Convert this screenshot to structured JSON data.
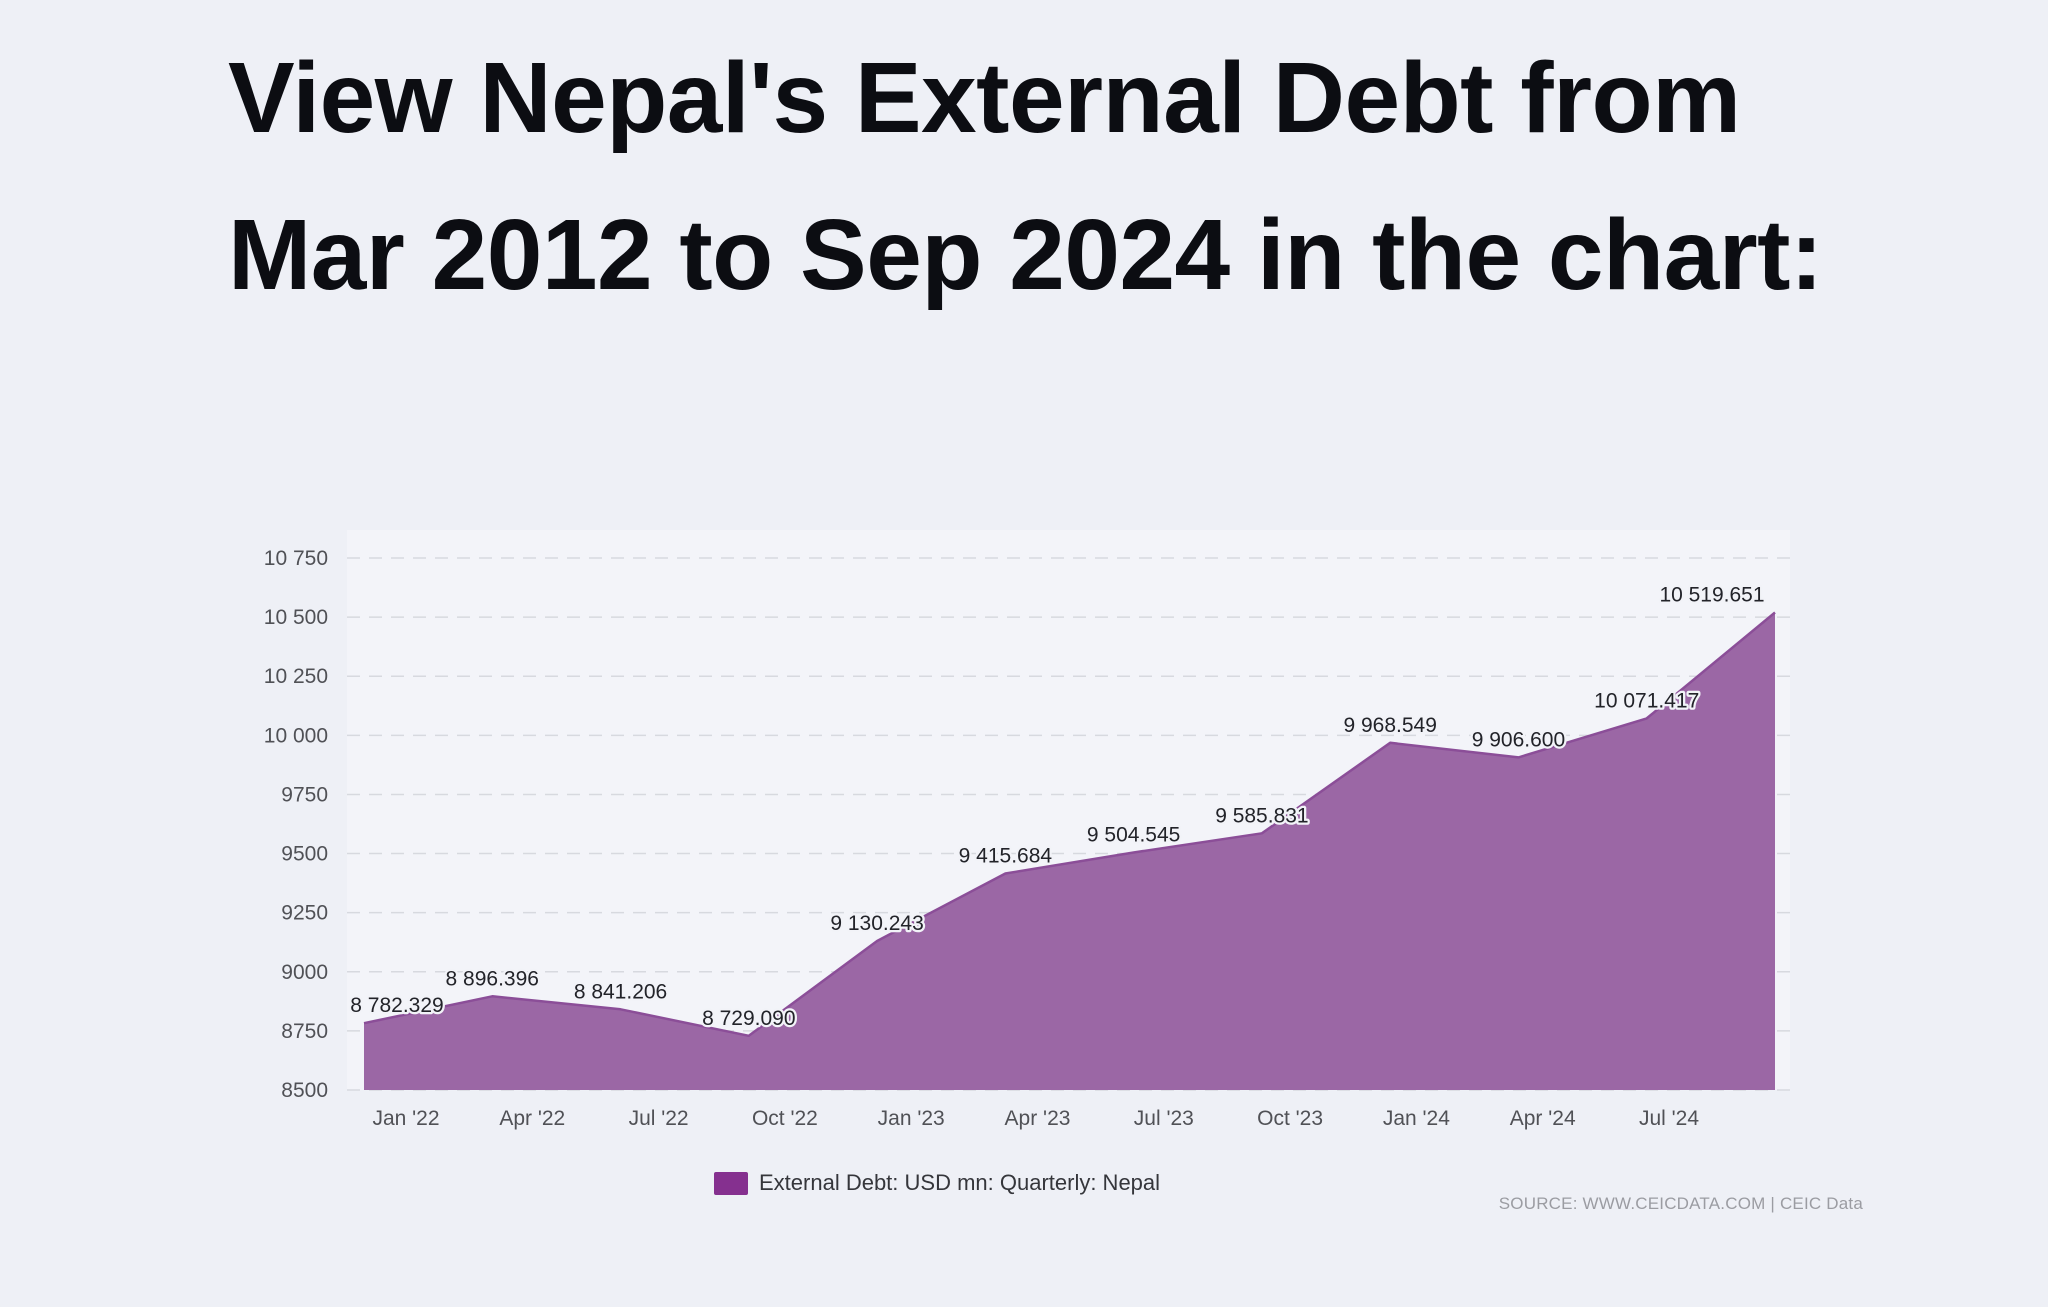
{
  "page": {
    "title_line1": "View Nepal's External Debt from",
    "title_line2": "Mar 2012 to Sep 2024 in the chart:",
    "source_text": "SOURCE: WWW.CEICDATA.COM | CEIC Data"
  },
  "legend": {
    "label": "External Debt: USD mn: Quarterly: Nepal",
    "swatch_color": "#85308f"
  },
  "colors": {
    "background": "#eef0f6",
    "plot_background": "#f3f4f9",
    "area_fill": "#9b67a5",
    "area_stroke": "#8b4e98",
    "grid_line": "#d7d9df",
    "axis_text": "#505156",
    "data_label_text": "#222329",
    "data_label_halo": "#f2f3f8",
    "title_text": "#0c0d12",
    "legend_text": "#35363b",
    "source_text": "#9b9ca2"
  },
  "chart_data": {
    "type": "area",
    "title": "View Nepal's External Debt from Mar 2012 to Sep 2024 in the chart:",
    "legend": "External Debt: USD mn: Quarterly: Nepal",
    "unit": "USD mn",
    "frequency": "Quarterly",
    "ylim": [
      8500,
      10750
    ],
    "y_ticks": [
      8500,
      8750,
      9000,
      9250,
      9500,
      9750,
      10000,
      10250,
      10500,
      10750
    ],
    "y_tick_labels": [
      "8500",
      "8750",
      "9000",
      "9250",
      "9500",
      "9750",
      "10 000",
      "10 250",
      "10 500",
      "10 750"
    ],
    "x_tick_labels": [
      "Jan '22",
      "Apr '22",
      "Jul '22",
      "Oct '22",
      "Jan '23",
      "Apr '23",
      "Jul '23",
      "Oct '23",
      "Jan '24",
      "Apr '24",
      "Jul '24"
    ],
    "values": [
      8782.329,
      8896.396,
      8841.206,
      8729.09,
      9130.243,
      9415.684,
      9504.545,
      9585.831,
      9968.549,
      9906.6,
      10071.417,
      10519.651
    ],
    "point_labels": [
      "8 782.329",
      "8 896.396",
      "8 841.206",
      "8 729.090",
      "9 130.243",
      "9 415.684",
      "9 504.545",
      "9 585.831",
      "9 968.549",
      "9 906.600",
      "10 071.417",
      "10 519.651"
    ],
    "grid": "horizontal-dashed",
    "legend_position": "bottom-center",
    "layout_hints": {
      "first_point_offset_from_first_tick_quarters": -0.33,
      "point_step_quarters": 1
    }
  }
}
